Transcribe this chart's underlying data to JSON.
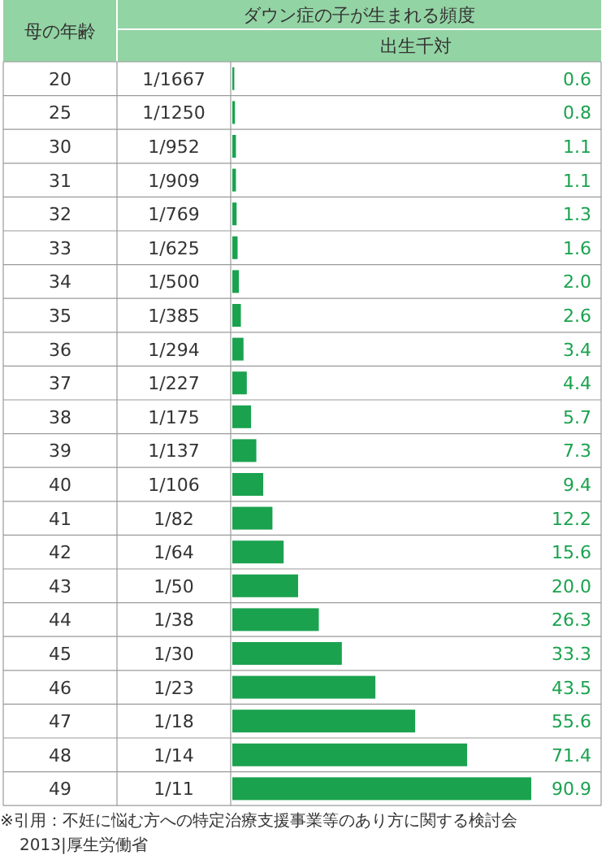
{
  "chart_data": {
    "type": "bar",
    "orientation": "horizontal",
    "title": "ダウン症の子が生まれる頻度",
    "xlabel": "出生千対",
    "ylabel": "母の年齢",
    "categories": [
      "20",
      "25",
      "30",
      "31",
      "32",
      "33",
      "34",
      "35",
      "36",
      "37",
      "38",
      "39",
      "40",
      "41",
      "42",
      "43",
      "44",
      "45",
      "46",
      "47",
      "48",
      "49"
    ],
    "values": [
      0.6,
      0.8,
      1.1,
      1.1,
      1.3,
      1.6,
      2.0,
      2.6,
      3.4,
      4.4,
      5.7,
      7.3,
      9.4,
      12.2,
      15.6,
      20.0,
      26.3,
      33.3,
      43.5,
      55.6,
      71.4,
      90.9
    ],
    "value_labels": [
      "0.6",
      "0.8",
      "1.1",
      "1.1",
      "1.3",
      "1.6",
      "2.0",
      "2.6",
      "3.4",
      "4.4",
      "5.7",
      "7.3",
      "9.4",
      "12.2",
      "15.6",
      "20.0",
      "26.3",
      "33.3",
      "43.5",
      "55.6",
      "71.4",
      "90.9"
    ],
    "color": "#1ba24f",
    "annotations": [
      "1/1667",
      "1/1250",
      "1/952",
      "1/909",
      "1/769",
      "1/625",
      "1/500",
      "1/385",
      "1/294",
      "1/227",
      "1/175",
      "1/137",
      "1/106",
      "1/82",
      "1/64",
      "1/50",
      "1/38",
      "1/30",
      "1/23",
      "1/18",
      "1/14",
      "1/11",
      "※引用：不妊に悩む方への特定治療支援事業等のあり方に関する検討会2013|厚生労働省"
    ]
  }
}
